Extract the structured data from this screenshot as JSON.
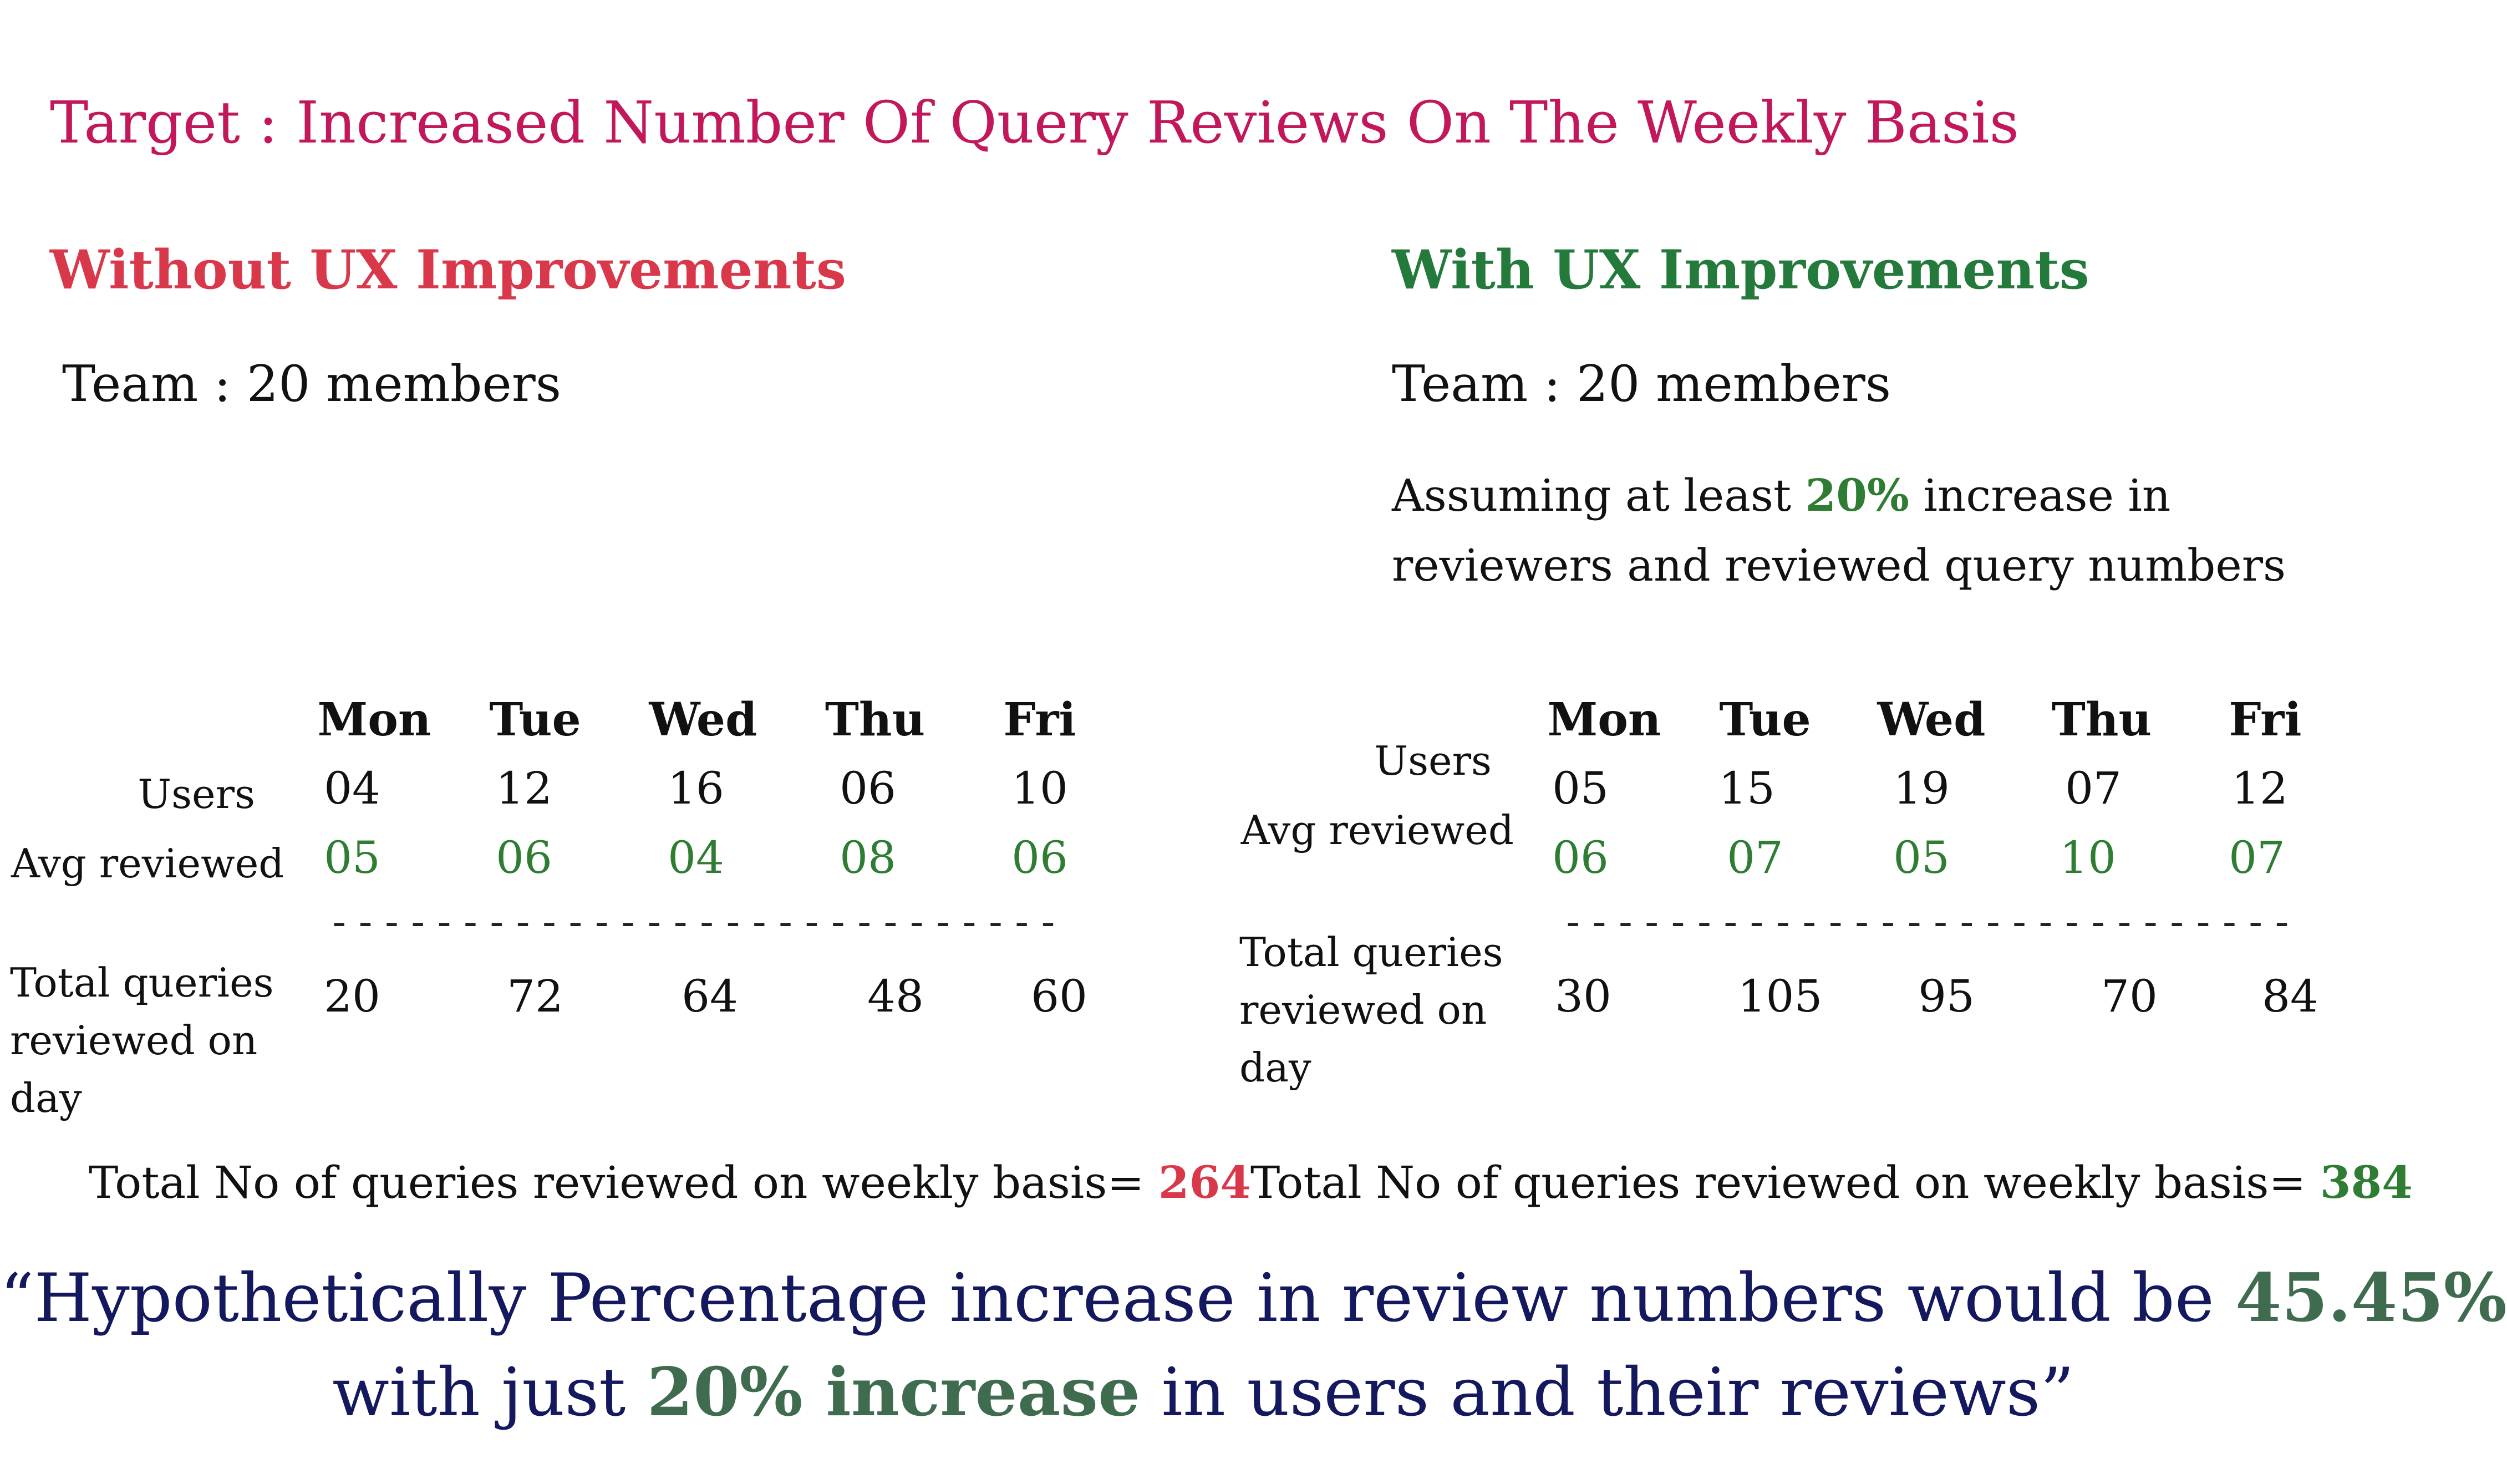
{
  "title": "Target : Increased Number Of Query Reviews On The Weekly Basis",
  "left": {
    "heading": "Without UX Improvements",
    "team": "Team : 20 members",
    "days": [
      "Mon",
      "Tue",
      "Wed",
      "Thu",
      "Fri"
    ],
    "users_label": "Users",
    "avg_label": "Avg reviewed",
    "users": [
      "04",
      "12",
      "16",
      "06",
      "10"
    ],
    "avg": [
      "05",
      "06",
      "04",
      "08",
      "06"
    ],
    "divider": "----------------------------",
    "total_label": "Total queries reviewed on day",
    "totals": [
      "20",
      "72",
      "64",
      "48",
      "60"
    ],
    "weekly_label": "Total No of queries reviewed on weekly basis=",
    "weekly_value": "264"
  },
  "right": {
    "heading": "With UX Improvements",
    "team": "Team : 20 members",
    "assume_pre": "Assuming at least ",
    "assume_pct": "20%",
    "assume_post": " increase in reviewers and reviewed query numbers",
    "days": [
      "Mon",
      "Tue",
      "Wed",
      "Thu",
      "Fri"
    ],
    "users_label": "Users",
    "avg_label": "Avg reviewed",
    "users": [
      "05",
      "15",
      "19",
      "07",
      "12"
    ],
    "avg": [
      "06",
      "07",
      "05",
      "10",
      "07"
    ],
    "divider": "----------------------------",
    "total_label": "Total queries reviewed on day",
    "totals": [
      "30",
      "105",
      "95",
      "70",
      "84"
    ],
    "weekly_label": "Total No of queries reviewed on weekly basis=",
    "weekly_value": "384"
  },
  "quote": {
    "line1_pre": "“Hypothetically Percentage increase in review numbers would be ",
    "line1_value": "45.45%",
    "line2_pre": "with just ",
    "line2_value": "20% increase",
    "line2_post": " in users and their reviews”"
  },
  "colors": {
    "title": "#c2185b",
    "negative": "#d9384b",
    "positive": "#2e7d32",
    "quote": "#14185e"
  }
}
